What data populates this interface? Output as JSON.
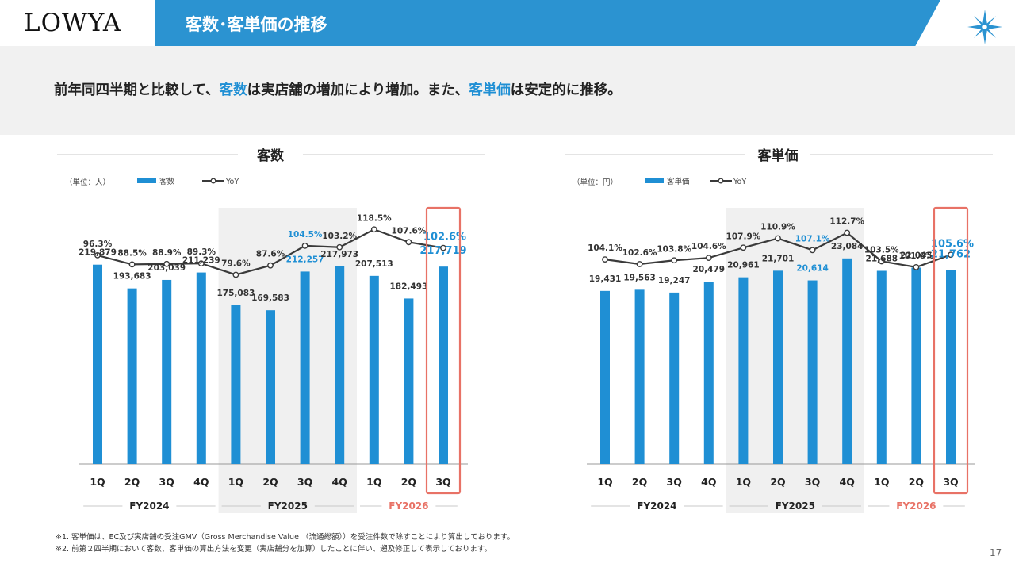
{
  "header": {
    "logo": "LOWYA",
    "title": "客数･客単価の推移"
  },
  "subhead": {
    "part1": "前年同四半期と比較して、",
    "kw1": "客数",
    "part2": "は実店舗の増加により増加。また、",
    "kw2": "客単価",
    "part3": "は安定的に推移。"
  },
  "colors": {
    "bar": "#1f8fd4",
    "line": "#3a3a3a",
    "highlight": "#1f8fd4",
    "fy2026": "#e87266",
    "shade": "#f0f0f0"
  },
  "chart_data": [
    {
      "type": "bar",
      "title": "客数",
      "unit_label": "（単位：人）",
      "legend": [
        "客数",
        "YoY"
      ],
      "categories": [
        "1Q",
        "2Q",
        "3Q",
        "4Q",
        "1Q",
        "2Q",
        "3Q",
        "4Q",
        "1Q",
        "2Q",
        "3Q"
      ],
      "groups": [
        {
          "label": "FY2024",
          "start": 0,
          "end": 3
        },
        {
          "label": "FY2025",
          "start": 4,
          "end": 7
        },
        {
          "label": "FY2026",
          "start": 8,
          "end": 10
        }
      ],
      "values": [
        219879,
        193683,
        203039,
        211239,
        175083,
        169583,
        212257,
        217973,
        207513,
        182493,
        217719
      ],
      "value_labels": [
        "219,879",
        "193,683",
        "203,039",
        "211,239",
        "175,083",
        "169,583",
        "212,257",
        "217,973",
        "207,513",
        "182,493",
        "217,719"
      ],
      "yoy": [
        96.3,
        88.5,
        88.9,
        89.3,
        79.6,
        87.6,
        104.5,
        103.2,
        118.5,
        107.6,
        102.6
      ],
      "yoy_labels": [
        "96.3%",
        "88.5%",
        "88.9%",
        "89.3%",
        "79.6%",
        "87.6%",
        "104.5%",
        "103.2%",
        "118.5%",
        "107.6%",
        "102.6%"
      ],
      "blue_label_index": 6,
      "emphasis_index": 10,
      "ylim": [
        0,
        280000
      ],
      "yoy_range": [
        50,
        135
      ]
    },
    {
      "type": "bar",
      "title": "客単価",
      "unit_label": "（単位：円）",
      "legend": [
        "客単価",
        "YoY"
      ],
      "categories": [
        "1Q",
        "2Q",
        "3Q",
        "4Q",
        "1Q",
        "2Q",
        "3Q",
        "4Q",
        "1Q",
        "2Q",
        "3Q"
      ],
      "groups": [
        {
          "label": "FY2024",
          "start": 0,
          "end": 3
        },
        {
          "label": "FY2025",
          "start": 4,
          "end": 7
        },
        {
          "label": "FY2026",
          "start": 8,
          "end": 10
        }
      ],
      "values": [
        19431,
        19563,
        19247,
        20479,
        20961,
        21701,
        20614,
        23084,
        21688,
        22045,
        21762
      ],
      "value_labels": [
        "19,431",
        "19,563",
        "19,247",
        "20,479",
        "20,961",
        "21,701",
        "20,614",
        "23,084",
        "21,688",
        "22,045",
        "21,762"
      ],
      "yoy": [
        104.1,
        102.6,
        103.8,
        104.6,
        107.9,
        110.9,
        107.1,
        112.7,
        103.5,
        101.6,
        105.6
      ],
      "yoy_labels": [
        "104.1%",
        "102.6%",
        "103.8%",
        "104.6%",
        "107.9%",
        "110.9%",
        "107.1%",
        "112.7%",
        "103.5%",
        "101.6%",
        "105.6%"
      ],
      "blue_label_index": 6,
      "emphasis_index": 10,
      "ylim": [
        0,
        28500
      ],
      "yoy_range": [
        88,
        120
      ]
    }
  ],
  "footnotes": [
    "※1. 客単価は、EC及び実店舗の受注GMV（Gross Merchandise Value （流通総額））を受注件数で除すことにより算出しております。",
    "※2. 前第２四半期において客数、客単価の算出方法を変更（実店舗分を加算）したことに伴い、遡及修正して表示しております。"
  ],
  "page_number": "17"
}
